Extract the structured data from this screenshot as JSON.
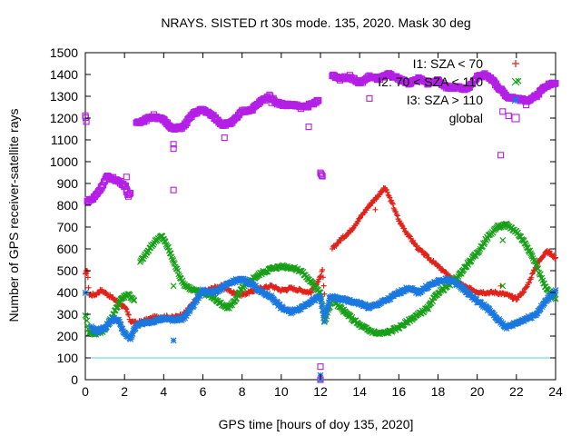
{
  "chart_data": {
    "type": "scatter",
    "title": "NRAYS. SISTED rt 30s mode. 135, 2020. Mask 30 deg",
    "xlabel": "GPS time [hours of doy 135, 2020]",
    "ylabel": "Number of GPS receiver-satellite rays",
    "xlim": [
      0,
      24
    ],
    "ylim": [
      0,
      1500
    ],
    "xticks": [
      0,
      2,
      4,
      6,
      8,
      10,
      12,
      14,
      16,
      18,
      20,
      22,
      24
    ],
    "yticks": [
      0,
      100,
      200,
      300,
      400,
      500,
      600,
      700,
      800,
      900,
      1000,
      1100,
      1200,
      1300,
      1400,
      1500
    ],
    "reference_line": {
      "y": 100,
      "color": "#4fd6d6"
    },
    "legend_position": "top-right",
    "series": [
      {
        "name": "I1: SZA < 70",
        "marker": "plus",
        "color": "#e2231a",
        "points": [
          [
            0,
            480
          ],
          [
            0.1,
            500
          ],
          [
            0.2,
            390
          ],
          [
            0.5,
            390
          ],
          [
            0.8,
            410
          ],
          [
            1.0,
            400
          ],
          [
            1.3,
            380
          ],
          [
            1.6,
            360
          ],
          [
            1.8,
            345
          ],
          [
            2.0,
            330
          ],
          [
            2.1,
            320
          ],
          [
            2.3,
            270
          ],
          [
            2.6,
            260
          ],
          [
            3.0,
            270
          ],
          [
            3.5,
            285
          ],
          [
            4.0,
            290
          ],
          [
            4.5,
            285
          ],
          [
            5.0,
            300
          ],
          [
            5.5,
            350
          ],
          [
            6.0,
            400
          ],
          [
            6.5,
            420
          ],
          [
            7.0,
            430
          ],
          [
            7.5,
            400
          ],
          [
            8.0,
            390
          ],
          [
            8.5,
            405
          ],
          [
            9.0,
            420
          ],
          [
            9.5,
            430
          ],
          [
            10.0,
            410
          ],
          [
            10.5,
            420
          ],
          [
            11.0,
            410
          ],
          [
            11.5,
            400
          ],
          [
            12.0,
            470
          ],
          [
            12.1,
            500
          ],
          [
            12.2,
            390
          ],
          [
            12.6,
            600
          ],
          [
            13.0,
            640
          ],
          [
            13.5,
            680
          ],
          [
            14.0,
            740
          ],
          [
            14.5,
            800
          ],
          [
            15.0,
            850
          ],
          [
            15.3,
            880
          ],
          [
            15.7,
            800
          ],
          [
            16.0,
            730
          ],
          [
            16.5,
            660
          ],
          [
            17.0,
            600
          ],
          [
            17.5,
            560
          ],
          [
            18.0,
            520
          ],
          [
            18.5,
            480
          ],
          [
            19.0,
            450
          ],
          [
            19.5,
            420
          ],
          [
            20.0,
            405
          ],
          [
            20.5,
            400
          ],
          [
            21.0,
            400
          ],
          [
            21.5,
            390
          ],
          [
            22.0,
            370
          ],
          [
            22.5,
            420
          ],
          [
            23.0,
            520
          ],
          [
            23.5,
            590
          ],
          [
            24.0,
            560
          ]
        ],
        "outliers": [
          [
            0.05,
            500
          ],
          [
            12.0,
            20
          ],
          [
            14.8,
            780
          ],
          [
            21.2,
            430
          ],
          [
            21.8,
            370
          ],
          [
            23.7,
            590
          ]
        ]
      },
      {
        "name": "I2: 70 < SZA < 110",
        "marker": "x",
        "color": "#18a018",
        "points": [
          [
            0,
            300
          ],
          [
            0.2,
            220
          ],
          [
            0.5,
            210
          ],
          [
            1.0,
            230
          ],
          [
            1.5,
            310
          ],
          [
            1.8,
            370
          ],
          [
            2.2,
            395
          ],
          [
            2.5,
            360
          ],
          [
            2.8,
            540
          ],
          [
            3.2,
            590
          ],
          [
            3.6,
            640
          ],
          [
            3.9,
            660
          ],
          [
            4.2,
            610
          ],
          [
            4.6,
            520
          ],
          [
            5.0,
            440
          ],
          [
            5.5,
            410
          ],
          [
            6.0,
            400
          ],
          [
            6.5,
            380
          ],
          [
            7.0,
            340
          ],
          [
            7.3,
            330
          ],
          [
            7.6,
            360
          ],
          [
            8.0,
            420
          ],
          [
            8.5,
            460
          ],
          [
            9.0,
            490
          ],
          [
            9.5,
            510
          ],
          [
            10.0,
            520
          ],
          [
            10.5,
            515
          ],
          [
            11.0,
            500
          ],
          [
            11.5,
            450
          ],
          [
            12.0,
            400
          ],
          [
            12.2,
            260
          ],
          [
            12.6,
            370
          ],
          [
            13.0,
            330
          ],
          [
            13.5,
            290
          ],
          [
            14.0,
            250
          ],
          [
            14.5,
            225
          ],
          [
            15.0,
            210
          ],
          [
            15.5,
            220
          ],
          [
            16.0,
            240
          ],
          [
            16.5,
            270
          ],
          [
            17.0,
            300
          ],
          [
            17.5,
            330
          ],
          [
            18.0,
            400
          ],
          [
            18.5,
            430
          ],
          [
            19.0,
            470
          ],
          [
            19.5,
            530
          ],
          [
            20.0,
            580
          ],
          [
            20.5,
            650
          ],
          [
            21.0,
            700
          ],
          [
            21.5,
            710
          ],
          [
            22.0,
            680
          ],
          [
            22.5,
            620
          ],
          [
            23.0,
            530
          ],
          [
            23.5,
            420
          ],
          [
            24.0,
            370
          ]
        ],
        "outliers": [
          [
            4.5,
            430
          ],
          [
            12.0,
            0
          ],
          [
            21.3,
            640
          ],
          [
            21.3,
            430
          ],
          [
            22.1,
            1370
          ]
        ]
      },
      {
        "name": "I3: SZA > 110",
        "marker": "asterisk",
        "color": "#1a78e0",
        "points": [
          [
            0,
            400
          ],
          [
            0.3,
            240
          ],
          [
            0.6,
            220
          ],
          [
            1.0,
            240
          ],
          [
            1.4,
            280
          ],
          [
            1.7,
            270
          ],
          [
            2.0,
            210
          ],
          [
            2.3,
            190
          ],
          [
            2.6,
            250
          ],
          [
            3.0,
            260
          ],
          [
            3.5,
            270
          ],
          [
            4.0,
            280
          ],
          [
            4.5,
            275
          ],
          [
            5.0,
            280
          ],
          [
            5.5,
            340
          ],
          [
            6.0,
            410
          ],
          [
            6.5,
            400
          ],
          [
            7.0,
            420
          ],
          [
            7.5,
            450
          ],
          [
            8.0,
            460
          ],
          [
            8.5,
            440
          ],
          [
            9.0,
            400
          ],
          [
            9.5,
            380
          ],
          [
            10.0,
            330
          ],
          [
            10.5,
            310
          ],
          [
            11.0,
            330
          ],
          [
            11.5,
            360
          ],
          [
            12.0,
            380
          ],
          [
            12.2,
            275
          ],
          [
            12.5,
            380
          ],
          [
            13.0,
            370
          ],
          [
            13.5,
            360
          ],
          [
            14.0,
            350
          ],
          [
            14.5,
            330
          ],
          [
            15.0,
            350
          ],
          [
            15.5,
            370
          ],
          [
            16.0,
            400
          ],
          [
            16.5,
            420
          ],
          [
            17.0,
            400
          ],
          [
            17.5,
            430
          ],
          [
            18.0,
            450
          ],
          [
            18.5,
            460
          ],
          [
            19.0,
            440
          ],
          [
            19.5,
            400
          ],
          [
            20.0,
            360
          ],
          [
            20.5,
            330
          ],
          [
            21.0,
            280
          ],
          [
            21.5,
            240
          ],
          [
            22.0,
            260
          ],
          [
            22.5,
            280
          ],
          [
            23.0,
            300
          ],
          [
            23.5,
            360
          ],
          [
            24.0,
            410
          ]
        ],
        "outliers": [
          [
            4.5,
            180
          ],
          [
            12.0,
            20
          ],
          [
            12.0,
            0
          ]
        ]
      },
      {
        "name": "global",
        "marker": "square",
        "color": "#b41ee6",
        "points": [
          [
            0,
            1210
          ],
          [
            0.05,
            1190
          ],
          [
            0.1,
            820
          ],
          [
            0.4,
            830
          ],
          [
            0.8,
            880
          ],
          [
            1.1,
            930
          ],
          [
            1.5,
            920
          ],
          [
            1.9,
            900
          ],
          [
            2.1,
            880
          ],
          [
            2.2,
            840
          ],
          [
            2.3,
            850
          ],
          [
            2.6,
            1180
          ],
          [
            3.0,
            1190
          ],
          [
            3.5,
            1210
          ],
          [
            4.0,
            1190
          ],
          [
            4.5,
            1150
          ],
          [
            5.0,
            1160
          ],
          [
            5.5,
            1220
          ],
          [
            6.0,
            1240
          ],
          [
            6.5,
            1210
          ],
          [
            7.0,
            1170
          ],
          [
            7.5,
            1180
          ],
          [
            8.0,
            1230
          ],
          [
            8.5,
            1240
          ],
          [
            9.0,
            1280
          ],
          [
            9.4,
            1300
          ],
          [
            9.8,
            1270
          ],
          [
            10.2,
            1260
          ],
          [
            10.6,
            1260
          ],
          [
            11.0,
            1250
          ],
          [
            11.5,
            1260
          ],
          [
            11.9,
            1280
          ],
          [
            12.0,
            950
          ],
          [
            12.1,
            930
          ],
          [
            12.6,
            1400
          ],
          [
            13.0,
            1380
          ],
          [
            13.5,
            1390
          ],
          [
            14.0,
            1360
          ],
          [
            14.5,
            1390
          ],
          [
            15.0,
            1380
          ],
          [
            15.5,
            1400
          ],
          [
            16.0,
            1380
          ],
          [
            16.5,
            1360
          ],
          [
            17.0,
            1380
          ],
          [
            17.5,
            1360
          ],
          [
            18.0,
            1370
          ],
          [
            18.5,
            1340
          ],
          [
            19.0,
            1340
          ],
          [
            19.5,
            1330
          ],
          [
            20.0,
            1390
          ],
          [
            20.5,
            1400
          ],
          [
            21.0,
            1350
          ],
          [
            21.5,
            1300
          ],
          [
            22.0,
            1290
          ],
          [
            22.5,
            1280
          ],
          [
            23.0,
            1300
          ],
          [
            23.5,
            1350
          ],
          [
            24.0,
            1360
          ]
        ],
        "outliers": [
          [
            2.1,
            930
          ],
          [
            2.1,
            860
          ],
          [
            4.5,
            870
          ],
          [
            4.5,
            1080
          ],
          [
            4.5,
            1060
          ],
          [
            7.1,
            1110
          ],
          [
            9.5,
            1270
          ],
          [
            11.4,
            1160
          ],
          [
            12.0,
            60
          ],
          [
            12.0,
            0
          ],
          [
            14.5,
            1290
          ],
          [
            21.2,
            1030
          ],
          [
            21.3,
            1230
          ],
          [
            21.6,
            1210
          ],
          [
            22.5,
            1260
          ]
        ]
      }
    ]
  }
}
